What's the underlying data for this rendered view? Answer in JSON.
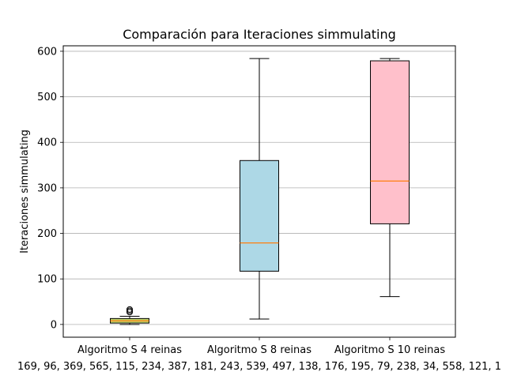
{
  "chart_data": {
    "type": "box",
    "title": "Comparación para Iteraciones simmulating",
    "ylabel": "Iteraciones simmulating",
    "xlabel_partial_text": "169, 96, 369, 565, 115, 234, 387, 181, 243, 539, 497, 138, 176, 195, 79, 238, 34, 558, 121, 1",
    "ylim": [
      -28,
      612
    ],
    "yticks": [
      0,
      100,
      200,
      300,
      400,
      500,
      600
    ],
    "grid": "y",
    "categories": [
      "Algoritmo S 4 reinas",
      "Algoritmo S 8 reinas",
      "Algoritmo S 10 reinas"
    ],
    "boxes": [
      {
        "category": "Algoritmo S 4 reinas",
        "whisker_low": 0,
        "q1": 3,
        "median": 8,
        "q3": 13,
        "whisker_high": 18,
        "outliers": [
          27,
          30,
          33
        ],
        "color": "#bfd36a"
      },
      {
        "category": "Algoritmo S 8 reinas",
        "whisker_low": 12,
        "q1": 117,
        "median": 179,
        "q3": 360,
        "whisker_high": 584,
        "outliers": [],
        "color": "#add8e6"
      },
      {
        "category": "Algoritmo S 10 reinas",
        "whisker_low": 61,
        "q1": 221,
        "median": 315,
        "q3": 579,
        "whisker_high": 584,
        "outliers": [],
        "color": "#ffc0cb"
      }
    ],
    "median_color": "#ff7f0e",
    "grid_color": "#b0b0b0"
  }
}
